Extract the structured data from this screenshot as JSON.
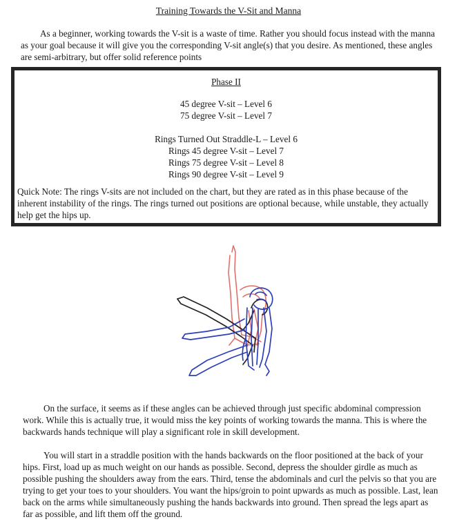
{
  "title": "Training Towards the V-Sit and Manna",
  "intro": "As a beginner, working towards the V-sit is a waste of time. Rather you should focus instead with the manna as your goal because it will give you the corresponding V-sit angle(s) that you desire. As mentioned, these angles are semi-arbitrary, but offer solid reference points",
  "phase_box": {
    "heading": "Phase II",
    "group_a": [
      "45 degree V-sit – Level 6",
      "75 degree V-sit – Level 7"
    ],
    "group_b": [
      "Rings Turned Out Straddle-L – Level 6",
      "Rings 45 degree V-sit – Level 7",
      "Rings 75 degree V-sit – Level 8",
      "Rings 90 degree V-sit – Level 9"
    ],
    "quick_note": "Quick Note: The rings V-sits are not included on the chart, but they are rated as in this phase because of the inherent instability of the rings. The rings turned out positions are optional because, while unstable, they actually help get the hips up."
  },
  "illustration": {
    "colors": {
      "vertical_pose": "#e0706a",
      "angled_pose": "#222222",
      "floor_pose": "#2b3fb8"
    }
  },
  "paragraphs": [
    "On the surface, it seems as if these angles can be achieved through just specific abdominal compression work. While this is actually true, it would miss the key points of working towards the manna. This is where the backwards hands technique will play a significant role in skill development.",
    "You will start in a straddle position with the hands backwards on the floor positioned at the back of your hips. First, load up as much weight on our hands as possible. Second, depress the shoulder girdle as much as possible pushing the shoulders away from the ears. Third, tense the abdominals and curl the pelvis so that you are trying to get your toes to your shoulders. You want the hips/groin to point upwards as much as possible. Last, lean back on the arms while simultaneously pushing the hands backwards into ground. Then spread the legs apart as far as possible, and lift them off the ground."
  ]
}
